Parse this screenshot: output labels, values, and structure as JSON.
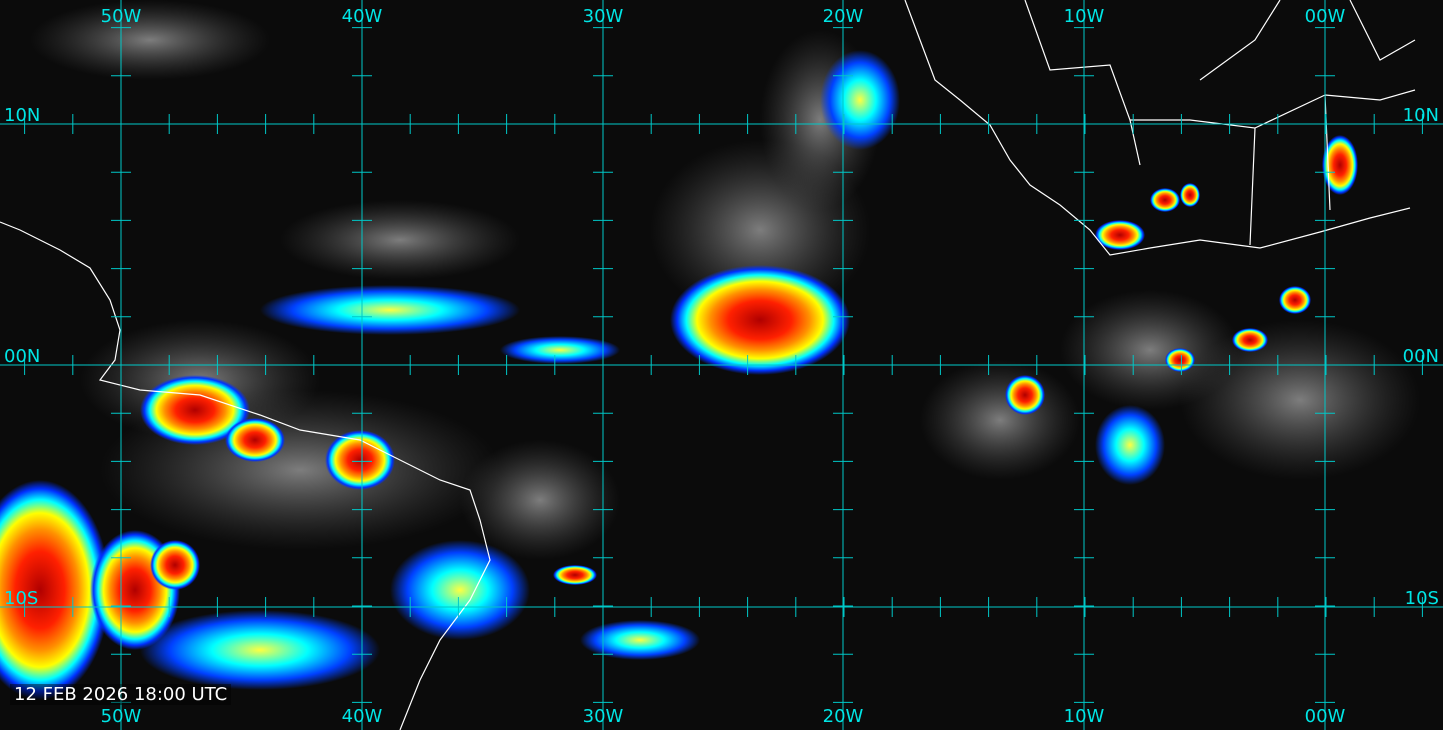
{
  "map": {
    "timestamp": "12 FEB 2026 18:00 UTC",
    "longitude_labels": [
      "50W",
      "40W",
      "30W",
      "20W",
      "10W",
      "00W"
    ],
    "latitude_labels": [
      "10N",
      "00N",
      "10S"
    ],
    "grid_spacing_degrees": 10,
    "tick_spacing_degrees": 2,
    "colors": {
      "grid": "#00c8c8",
      "label": "#00e5e5",
      "coastline": "#ffffff",
      "background": "#0b0b0b",
      "enhancement_scale": [
        "#0000ff",
        "#00ffff",
        "#ffff00",
        "#ff8000",
        "#ff0000",
        "#a00000"
      ]
    },
    "imagery": "enhanced infrared satellite"
  }
}
